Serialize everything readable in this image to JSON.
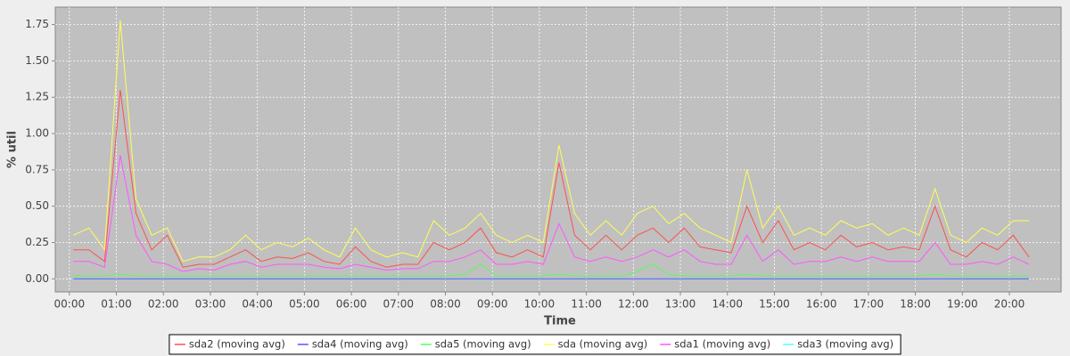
{
  "chart_data": {
    "type": "line",
    "x_label": "Time",
    "y_label": "% util",
    "x": [
      5,
      25,
      45,
      65,
      85,
      105,
      125,
      145,
      165,
      185,
      205,
      225,
      245,
      265,
      285,
      305,
      325,
      345,
      365,
      385,
      405,
      425,
      445,
      465,
      485,
      505,
      525,
      545,
      565,
      585,
      605,
      625,
      645,
      665,
      685,
      705,
      725,
      745,
      765,
      785,
      805,
      825,
      845,
      865,
      885,
      905,
      925,
      945,
      965,
      985,
      1005,
      1025,
      1045,
      1065,
      1085,
      1105,
      1125,
      1145,
      1165,
      1185,
      1205,
      1225
    ],
    "xlim": [
      -18,
      1266
    ],
    "xticks": [
      {
        "value": 0,
        "label": "00:00"
      },
      {
        "value": 60,
        "label": "01:00"
      },
      {
        "value": 120,
        "label": "02:00"
      },
      {
        "value": 180,
        "label": "03:00"
      },
      {
        "value": 240,
        "label": "04:00"
      },
      {
        "value": 300,
        "label": "05:00"
      },
      {
        "value": 360,
        "label": "06:00"
      },
      {
        "value": 420,
        "label": "07:00"
      },
      {
        "value": 480,
        "label": "08:00"
      },
      {
        "value": 540,
        "label": "09:00"
      },
      {
        "value": 600,
        "label": "10:00"
      },
      {
        "value": 660,
        "label": "11:00"
      },
      {
        "value": 720,
        "label": "12:00"
      },
      {
        "value": 780,
        "label": "13:00"
      },
      {
        "value": 840,
        "label": "14:00"
      },
      {
        "value": 900,
        "label": "15:00"
      },
      {
        "value": 960,
        "label": "16:00"
      },
      {
        "value": 1020,
        "label": "17:00"
      },
      {
        "value": 1080,
        "label": "18:00"
      },
      {
        "value": 1140,
        "label": "19:00"
      },
      {
        "value": 1200,
        "label": "20:00"
      }
    ],
    "ylim": [
      -0.09,
      1.87
    ],
    "yticks": [
      {
        "value": 0,
        "label": "0.00"
      },
      0.25,
      {
        "value": 0.5,
        "label": "0.50"
      },
      0.75,
      {
        "value": 1,
        "label": "1.00"
      },
      1.25,
      {
        "value": 1.5,
        "label": "1.50"
      },
      1.75
    ],
    "grid": true,
    "legend": "bottom",
    "series": [
      {
        "name": "sda2 (moving avg)",
        "color": "#ff4f4f",
        "values": [
          0.2,
          0.2,
          0.12,
          1.3,
          0.45,
          0.2,
          0.3,
          0.08,
          0.1,
          0.1,
          0.15,
          0.2,
          0.12,
          0.15,
          0.14,
          0.18,
          0.12,
          0.1,
          0.22,
          0.12,
          0.08,
          0.1,
          0.1,
          0.25,
          0.2,
          0.25,
          0.35,
          0.18,
          0.15,
          0.2,
          0.15,
          0.8,
          0.3,
          0.2,
          0.3,
          0.2,
          0.3,
          0.35,
          0.25,
          0.35,
          0.22,
          0.2,
          0.18,
          0.5,
          0.25,
          0.4,
          0.2,
          0.25,
          0.2,
          0.3,
          0.22,
          0.25,
          0.2,
          0.22,
          0.2,
          0.5,
          0.2,
          0.15,
          0.25,
          0.2,
          0.3,
          0.15
        ]
      },
      {
        "name": "sda4 (moving avg)",
        "color": "#5555ff",
        "values": [
          0,
          0,
          0,
          0,
          0,
          0,
          0,
          0,
          0,
          0,
          0,
          0,
          0,
          0,
          0,
          0,
          0,
          0,
          0,
          0,
          0,
          0,
          0,
          0,
          0,
          0,
          0,
          0,
          0,
          0,
          0,
          0,
          0,
          0,
          0,
          0,
          0,
          0,
          0,
          0,
          0,
          0,
          0,
          0,
          0,
          0,
          0,
          0,
          0,
          0,
          0,
          0,
          0,
          0,
          0,
          0,
          0,
          0,
          0,
          0,
          0,
          0
        ]
      },
      {
        "name": "sda5 (moving avg)",
        "color": "#55ff55",
        "values": [
          0.02,
          0.02,
          0.02,
          0.03,
          0.02,
          0.02,
          0.02,
          0.02,
          0.02,
          0.02,
          0.02,
          0.02,
          0.02,
          0.02,
          0.02,
          0.02,
          0.02,
          0.02,
          0.02,
          0.02,
          0.02,
          0.02,
          0.02,
          0.02,
          0.02,
          0.03,
          0.1,
          0.02,
          0.02,
          0.02,
          0.02,
          0.03,
          0.02,
          0.02,
          0.02,
          0.02,
          0.05,
          0.1,
          0.03,
          0.02,
          0.02,
          0.02,
          0.02,
          0.03,
          0.02,
          0.02,
          0.02,
          0.02,
          0.02,
          0.02,
          0.02,
          0.02,
          0.02,
          0.02,
          0.02,
          0.03,
          0.02,
          0.02,
          0.02,
          0.02,
          0.02,
          0.02
        ]
      },
      {
        "name": "sda (moving avg)",
        "color": "#ffff55",
        "values": [
          0.3,
          0.35,
          0.2,
          1.78,
          0.55,
          0.3,
          0.35,
          0.12,
          0.15,
          0.15,
          0.2,
          0.3,
          0.2,
          0.25,
          0.22,
          0.28,
          0.2,
          0.15,
          0.35,
          0.2,
          0.15,
          0.18,
          0.15,
          0.4,
          0.3,
          0.35,
          0.45,
          0.3,
          0.25,
          0.3,
          0.25,
          0.92,
          0.45,
          0.3,
          0.4,
          0.3,
          0.45,
          0.5,
          0.38,
          0.45,
          0.35,
          0.3,
          0.25,
          0.75,
          0.35,
          0.5,
          0.3,
          0.35,
          0.3,
          0.4,
          0.35,
          0.38,
          0.3,
          0.35,
          0.3,
          0.62,
          0.3,
          0.25,
          0.35,
          0.3,
          0.4,
          0.4
        ]
      },
      {
        "name": "sda1 (moving avg)",
        "color": "#ff55ff",
        "values": [
          0.12,
          0.12,
          0.08,
          0.85,
          0.3,
          0.12,
          0.1,
          0.05,
          0.07,
          0.06,
          0.1,
          0.12,
          0.08,
          0.1,
          0.1,
          0.1,
          0.08,
          0.07,
          0.1,
          0.08,
          0.06,
          0.07,
          0.07,
          0.12,
          0.12,
          0.15,
          0.2,
          0.1,
          0.1,
          0.12,
          0.1,
          0.38,
          0.15,
          0.12,
          0.15,
          0.12,
          0.15,
          0.2,
          0.15,
          0.2,
          0.12,
          0.1,
          0.1,
          0.3,
          0.12,
          0.2,
          0.1,
          0.12,
          0.12,
          0.15,
          0.12,
          0.15,
          0.12,
          0.12,
          0.12,
          0.25,
          0.1,
          0.1,
          0.12,
          0.1,
          0.15,
          0.1
        ]
      },
      {
        "name": "sda3 (moving avg)",
        "color": "#55ffff",
        "values": [
          0,
          0,
          0,
          0,
          0,
          0,
          0,
          0,
          0,
          0,
          0,
          0,
          0,
          0,
          0,
          0,
          0,
          0,
          0,
          0,
          0,
          0,
          0,
          0,
          0,
          0,
          0,
          0,
          0,
          0,
          0,
          0,
          0,
          0,
          0,
          0,
          0,
          0,
          0,
          0,
          0,
          0,
          0,
          0,
          0,
          0,
          0,
          0,
          0,
          0,
          0,
          0,
          0,
          0,
          0,
          0,
          0,
          0,
          0,
          0,
          0,
          0
        ]
      }
    ]
  }
}
